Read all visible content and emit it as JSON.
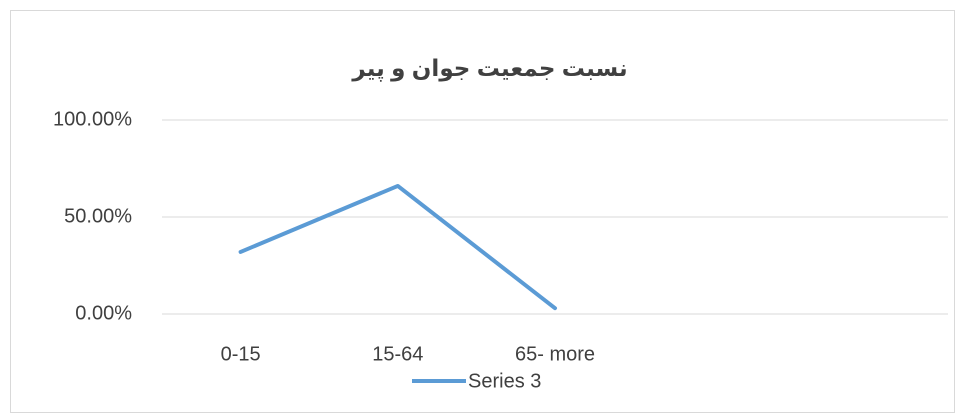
{
  "chart_data": {
    "type": "line",
    "title": "نسبت جمعیت جوان و پیر",
    "categories": [
      "0-15",
      "15-64",
      "65- more",
      null,
      null
    ],
    "series": [
      {
        "name": "Series 3",
        "color": "#5b9bd5",
        "values": [
          32,
          66,
          3,
          null,
          null
        ]
      }
    ],
    "ylim": [
      0,
      100
    ],
    "yticks": [
      {
        "value": 0,
        "label": "0.00%"
      },
      {
        "value": 50,
        "label": "50.00%"
      },
      {
        "value": 100,
        "label": "100.00%"
      }
    ],
    "grid": true,
    "legend": "bottom"
  }
}
